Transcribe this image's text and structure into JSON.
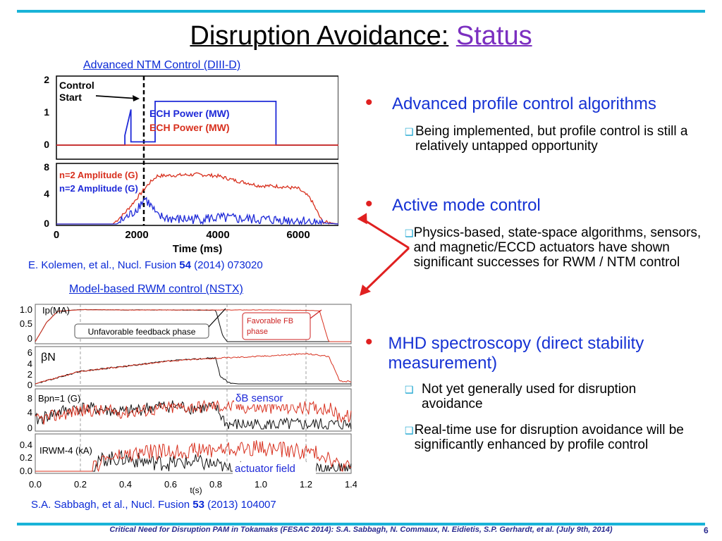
{
  "slide": {
    "title_main": "Disruption Avoidance:",
    "title_status": "Status",
    "page_number": "6",
    "footer": "Critical Need for Disruption PAM in Tokamaks (FESAC 2014): S.A. Sabbagh, N. Commaux, N. Eidietis, S.P. Gerhardt, et al. (July 9th, 2014)"
  },
  "figure1": {
    "caption": "Advanced NTM Control (DIII-D)",
    "citation_pre": "E. Kolemen, et al., Nucl. Fusion ",
    "citation_vol": "54",
    "citation_post": " (2014) 073020",
    "annotation_control": "Control",
    "annotation_start": "Start",
    "legend_ech_blue": "ECH Power (MW)",
    "legend_ech_red": "ECH Power (MW)",
    "legend_n2_red": "n=2 Amplitude (G)",
    "legend_n2_blue": "n=2 Amplitude (G)",
    "xlabel": "Time (ms)",
    "xticks": [
      "0",
      "2000",
      "4000",
      "6000"
    ],
    "top_yticks": [
      "2",
      "1",
      "0"
    ],
    "bottom_yticks": [
      "8",
      "4",
      "0"
    ]
  },
  "figure2": {
    "caption": "Model-based RWM control (NSTX)",
    "citation_pre": "S.A. Sabbagh, et al., Nucl. Fusion ",
    "citation_vol": "53",
    "citation_post": " (2013) 104007",
    "label_unfavorable": "Unfavorable feedback phase",
    "label_favorable_1": "Favorable FB",
    "label_favorable_2": "phase",
    "label_dB_sensor": "δB sensor",
    "label_actuator": "actuator field",
    "panel_ip": "Ip(MA)",
    "panel_beta": "βN",
    "panel_bp": "Bpn=1 (G)",
    "panel_irwm": "IRWM-4 (kA)",
    "xlabel": "t(s)",
    "xticks": [
      "0.0",
      "0.2",
      "0.4",
      "0.6",
      "0.8",
      "1.0",
      "1.2",
      "1.4"
    ],
    "ip_yticks": [
      "1.0",
      "0.5",
      "0"
    ],
    "beta_yticks": [
      "6",
      "4",
      "2",
      "0"
    ],
    "bp_yticks": [
      "8",
      "4",
      "0"
    ],
    "irwm_yticks": [
      "0.4",
      "0.2",
      "0.0"
    ]
  },
  "bullets": [
    {
      "text": "Advanced profile control algorithms",
      "subs": [
        "Being implemented, but profile control is still a relatively untapped opportunity"
      ]
    },
    {
      "text": "Active mode control",
      "subs": [
        "Physics-based, state-space algorithms, sensors, and magnetic/ECCD actuators have shown significant successes for RWM / NTM control"
      ]
    },
    {
      "text": "MHD spectroscopy (direct stability measurement)",
      "subs": [
        "Not yet generally used for disruption avoidance",
        "Real-time use for disruption avoidance will be significantly enhanced by profile control"
      ]
    }
  ],
  "colors": {
    "accent_bar": "#19b3d8",
    "title_status": "#7b2fc0",
    "bullet_text": "#1632d4",
    "bullet_dot": "#e02020",
    "arrow": "#e02020",
    "series_blue": "#1f2ad8",
    "series_red": "#d8301e"
  },
  "chart_data": [
    {
      "type": "line",
      "title": "Advanced NTM Control (DIII-D)",
      "xlabel": "Time (ms)",
      "xlim": [
        0,
        7000
      ],
      "panels": [
        {
          "ylim": [
            0,
            2
          ],
          "series": [
            {
              "name": "ECH Power (MW)",
              "color": "blue",
              "x": [
                0,
                1700,
                1700,
                1850,
                1850,
                2450,
                2450,
                5450,
                5450,
                7000
              ],
              "y": [
                0,
                0,
                0.3,
                1.1,
                0.1,
                0.1,
                1.35,
                1.35,
                0,
                0
              ]
            },
            {
              "name": "ECH Power (MW)",
              "color": "red",
              "x": [
                0,
                1800,
                5400,
                7000
              ],
              "y": [
                0,
                0,
                0,
                0
              ]
            }
          ]
        },
        {
          "ylim": [
            0,
            8
          ],
          "series": [
            {
              "name": "n=2 Amplitude (G)",
              "color": "red",
              "x": [
                0,
                1400,
                1700,
                2000,
                2300,
                2500,
                3000,
                3500,
                4000,
                4500,
                4800,
                5000,
                5500,
                6000,
                6300,
                6600,
                7000
              ],
              "y": [
                0,
                0,
                1.5,
                3.5,
                5.5,
                6.5,
                6.6,
                6.7,
                6.5,
                5.8,
                5.5,
                5.2,
                5.1,
                4.8,
                3.5,
                0.3,
                0
              ]
            },
            {
              "name": "n=2 Amplitude (G)",
              "color": "blue",
              "x": [
                0,
                1500,
                1900,
                2200,
                2400,
                2500,
                3000,
                4000,
                5000,
                6000,
                6500,
                7000
              ],
              "y": [
                0,
                0,
                1.5,
                3.5,
                2.0,
                1.0,
                0.6,
                0.8,
                0.6,
                0.5,
                0.2,
                0
              ]
            }
          ]
        }
      ]
    },
    {
      "type": "line",
      "title": "Model-based RWM control (NSTX)",
      "xlabel": "t(s)",
      "xlim": [
        0.0,
        1.4
      ],
      "panels": [
        {
          "ylabel": "Ip(MA)",
          "ylim": [
            0,
            1.1
          ],
          "series": [
            {
              "color": "black",
              "x": [
                0.0,
                0.05,
                0.1,
                0.2,
                0.4,
                0.6,
                0.8,
                0.83,
                0.85,
                0.9,
                1.4
              ],
              "y": [
                0,
                0.6,
                0.95,
                1.0,
                0.99,
                0.99,
                0.98,
                0.2,
                0.0,
                0,
                0
              ]
            },
            {
              "color": "red",
              "x": [
                0.0,
                0.05,
                0.1,
                0.2,
                0.4,
                0.6,
                0.8,
                1.0,
                1.2,
                1.26,
                1.3,
                1.4
              ],
              "y": [
                0,
                0.6,
                0.95,
                1.0,
                0.99,
                0.99,
                0.99,
                0.99,
                0.98,
                0.96,
                0.0,
                0
              ]
            }
          ]
        },
        {
          "ylabel": "βN",
          "ylim": [
            0,
            7
          ],
          "series": [
            {
              "color": "black",
              "x": [
                0.0,
                0.2,
                0.4,
                0.6,
                0.8,
                0.82,
                0.86,
                0.9
              ],
              "y": [
                0,
                2.5,
                3.5,
                4.6,
                5.2,
                1.5,
                0.2,
                0
              ]
            },
            {
              "color": "red",
              "x": [
                0.0,
                0.2,
                0.4,
                0.6,
                0.8,
                1.0,
                1.2,
                1.3,
                1.35
              ],
              "y": [
                0,
                2.5,
                3.5,
                4.6,
                5.1,
                5.5,
                6.0,
                5.5,
                0.5
              ]
            }
          ]
        },
        {
          "ylabel": "Bpn=1 (G)",
          "ylim": [
            0,
            9
          ],
          "series": [
            {
              "color": "black",
              "x": [
                0.0,
                0.1,
                0.2,
                0.3,
                0.4,
                0.5,
                0.6,
                0.7,
                0.8,
                0.85
              ],
              "y": [
                2,
                4,
                5,
                4.5,
                4,
                5,
                5.5,
                5,
                5,
                1
              ]
            },
            {
              "color": "red",
              "x": [
                0.0,
                0.2,
                0.4,
                0.6,
                0.8,
                1.0,
                1.2,
                1.3,
                1.35
              ],
              "y": [
                2,
                4.5,
                4,
                5,
                5.5,
                5,
                5,
                5,
                3
              ]
            }
          ]
        },
        {
          "ylabel": "IRWM-4 (kA)",
          "ylim": [
            0,
            0.45
          ],
          "series": [
            {
              "color": "black",
              "x": [
                0.0,
                0.25,
                0.3,
                0.4,
                0.5,
                0.6,
                0.7,
                0.8,
                0.85
              ],
              "y": [
                0,
                0,
                0.16,
                0.16,
                0.12,
                0.1,
                0.12,
                0.08,
                0.02
              ]
            },
            {
              "color": "red",
              "x": [
                0.0,
                0.25,
                0.3,
                0.4,
                0.5,
                0.6,
                0.8,
                1.0,
                1.2,
                1.3,
                1.35
              ],
              "y": [
                0,
                0,
                0.16,
                0.2,
                0.25,
                0.25,
                0.28,
                0.3,
                0.25,
                0.2,
                0.05
              ]
            }
          ]
        }
      ]
    }
  ]
}
